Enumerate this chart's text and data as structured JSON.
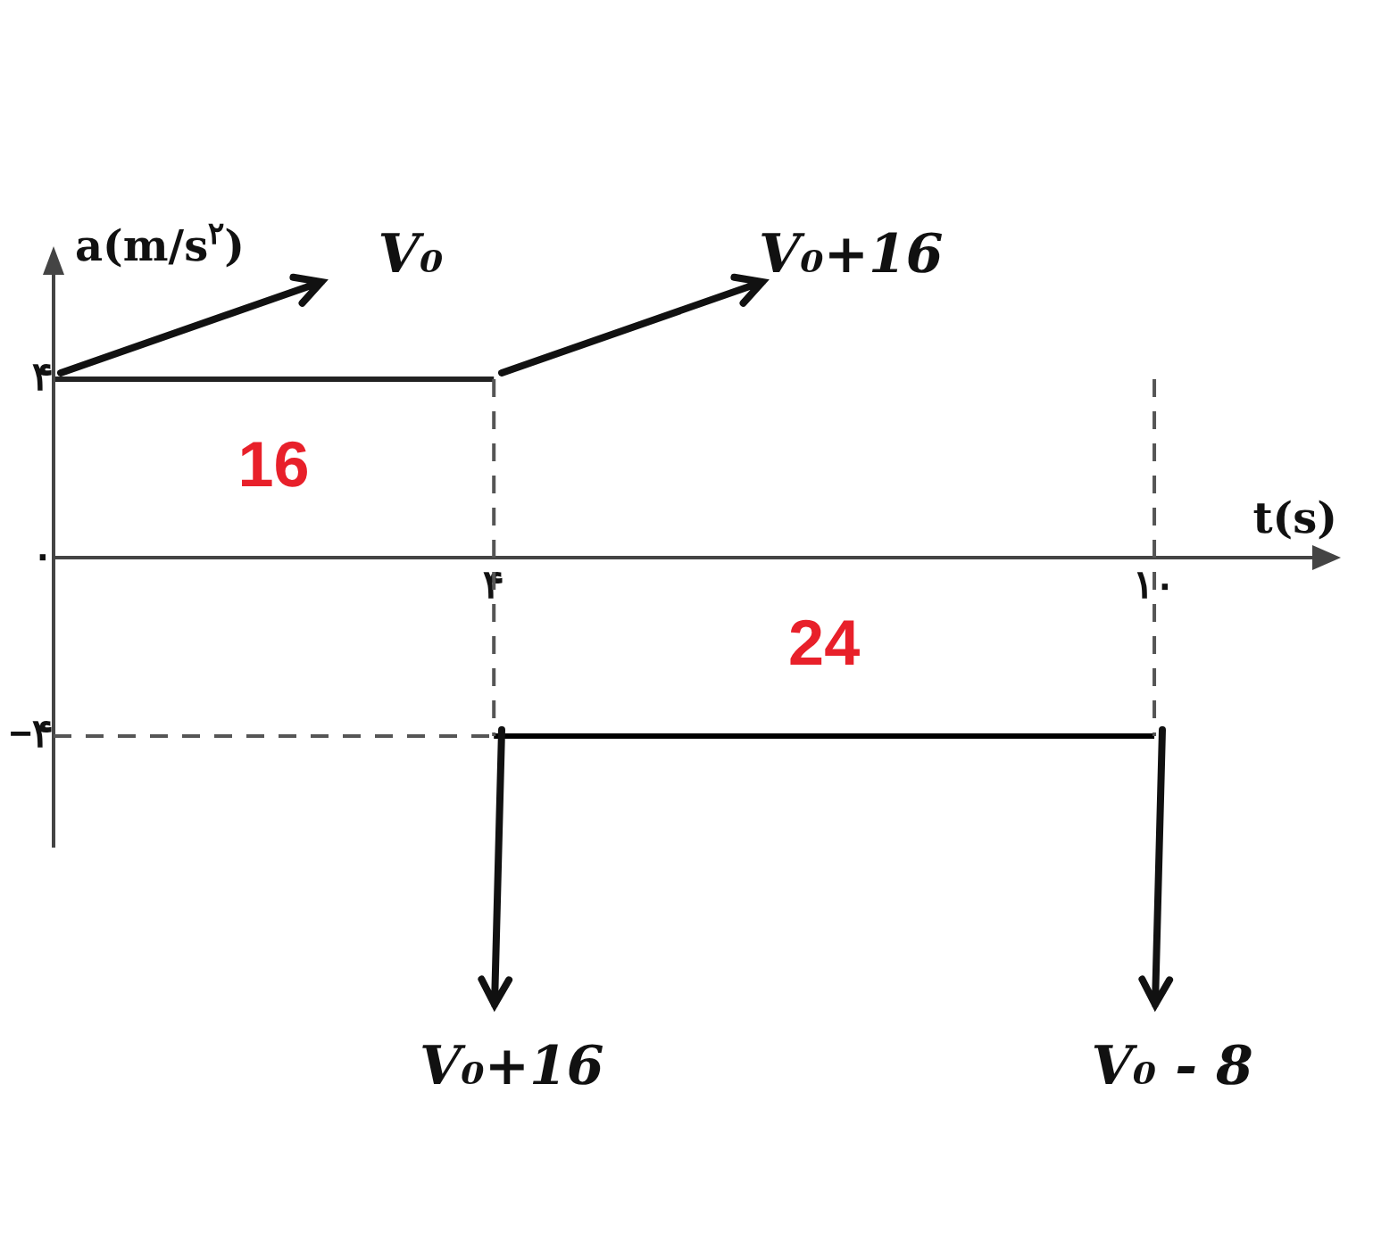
{
  "chart_data": {
    "type": "line",
    "xlabel": "t(s)",
    "ylabel": "a(m/s$^{۲}$)",
    "series": [
      {
        "x": [
          0,
          4
        ],
        "values": [
          4,
          4
        ],
        "color": "#222222"
      },
      {
        "x": [
          4,
          10
        ],
        "values": [
          -4,
          -4
        ],
        "color": "#000000"
      }
    ],
    "xlim": [
      0,
      11.5
    ],
    "ylim": [
      -6.5,
      6.5
    ],
    "xticks": [
      {
        "value": 4,
        "label": "۴"
      },
      {
        "value": 10,
        "label": "۱۰"
      }
    ],
    "yticks": [
      {
        "value": 4,
        "label": "۴"
      },
      {
        "value": 0,
        "label": "۰"
      },
      {
        "value": -4,
        "label": "−۴"
      }
    ],
    "ref_lines": [
      {
        "axis": "x",
        "value": 4,
        "label": null,
        "line_style": "dashed"
      },
      {
        "axis": "x",
        "value": 10,
        "label": null,
        "line_style": "dashed"
      },
      {
        "axis": "y",
        "value": -4,
        "label": null,
        "line_style": "dashed"
      }
    ],
    "annotations": [
      "16",
      "24",
      {
        "text": "V₀",
        "x": 0,
        "y": 4
      },
      {
        "text": "V₀+16",
        "x": 4,
        "y": 4
      },
      {
        "text": "V₀+16",
        "x": 4,
        "y": -4
      },
      {
        "text": "V₀ - 8",
        "x": 10,
        "y": -4
      }
    ],
    "grid": false,
    "legend": false,
    "marker": "none",
    "line_style": "solid"
  }
}
